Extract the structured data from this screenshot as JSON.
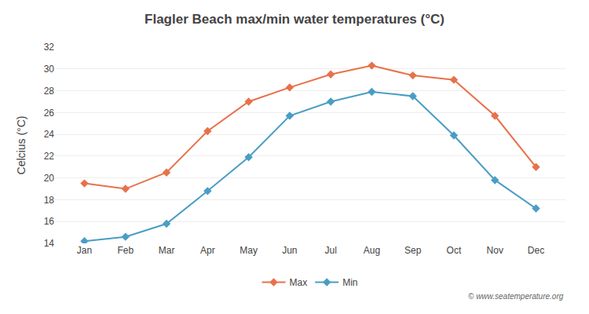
{
  "chart_data": {
    "type": "line",
    "title": "Flagler Beach max/min water temperatures (°C)",
    "y_label": "Celcius (°C)",
    "categories": [
      "Jan",
      "Feb",
      "Mar",
      "Apr",
      "May",
      "Jun",
      "Jul",
      "Aug",
      "Sep",
      "Oct",
      "Nov",
      "Dec"
    ],
    "series": [
      {
        "name": "Max",
        "color": "#e8714a",
        "marker": "diamond",
        "values": [
          19.5,
          19.0,
          20.5,
          24.3,
          27.0,
          28.3,
          29.5,
          30.3,
          29.4,
          29.0,
          25.7,
          21.0
        ]
      },
      {
        "name": "Min",
        "color": "#4a9dc4",
        "marker": "diamond",
        "values": [
          14.2,
          14.6,
          15.8,
          18.8,
          21.9,
          25.7,
          27.0,
          27.9,
          27.5,
          23.9,
          19.8,
          17.2
        ]
      }
    ],
    "ylim": [
      14,
      32
    ],
    "yticks": [
      14,
      16,
      18,
      20,
      22,
      24,
      26,
      28,
      30,
      32
    ],
    "grid": true,
    "legend": "bottom",
    "annotations": [
      "© www.seatemperature.org"
    ]
  }
}
